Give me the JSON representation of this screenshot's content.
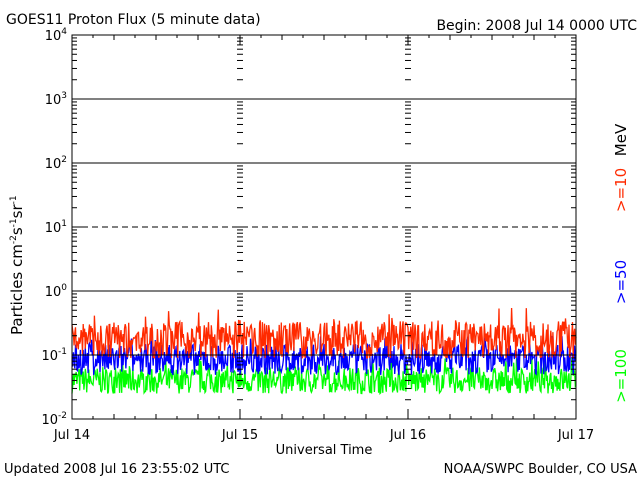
{
  "header": {
    "title": "GOES11 Proton Flux (5 minute data)",
    "begin": "Begin: 2008 Jul 14 0000 UTC"
  },
  "footer": {
    "updated": "Updated 2008 Jul 16 23:55:02 UTC",
    "credit": "NOAA/SWPC Boulder, CO USA"
  },
  "chart_data": {
    "type": "line",
    "title": "GOES11 Proton Flux (5 minute data)",
    "xlabel": "Universal Time",
    "ylabel": {
      "base": "Particles cm",
      "e1": "-2",
      "p2": "s",
      "e2": "-1",
      "p3": "sr",
      "e3": "-1"
    },
    "y_scale": "log",
    "ylim": [
      0.01,
      10000
    ],
    "y_ticks": [
      {
        "base": "10",
        "exp": "4"
      },
      {
        "base": "10",
        "exp": "3"
      },
      {
        "base": "10",
        "exp": "2"
      },
      {
        "base": "10",
        "exp": "1"
      },
      {
        "base": "10",
        "exp": "0"
      },
      {
        "base": "10",
        "exp": "-1"
      },
      {
        "base": "10",
        "exp": "-2"
      }
    ],
    "x_ticks": [
      "Jul 14",
      "Jul 15",
      "Jul 16",
      "Jul 17"
    ],
    "xlim_days": [
      0,
      3
    ],
    "reference_lines": [
      {
        "value": 1000,
        "style": "solid"
      },
      {
        "value": 100,
        "style": "solid"
      },
      {
        "value": 10,
        "style": "dashed"
      },
      {
        "value": 1,
        "style": "solid"
      },
      {
        "value": 0.1,
        "style": "solid"
      }
    ],
    "legend_unit": "MeV",
    "series": [
      {
        "name": ">=10",
        "color": "#ff2a00",
        "typical": 0.17,
        "range": [
          0.09,
          0.55
        ]
      },
      {
        "name": ">=50",
        "color": "#0000ff",
        "typical": 0.085,
        "range": [
          0.045,
          0.2
        ]
      },
      {
        "name": ">=100",
        "color": "#00ff00",
        "typical": 0.04,
        "range": [
          0.025,
          0.09
        ]
      }
    ],
    "legend_position": "right, vertical",
    "grid": false
  }
}
